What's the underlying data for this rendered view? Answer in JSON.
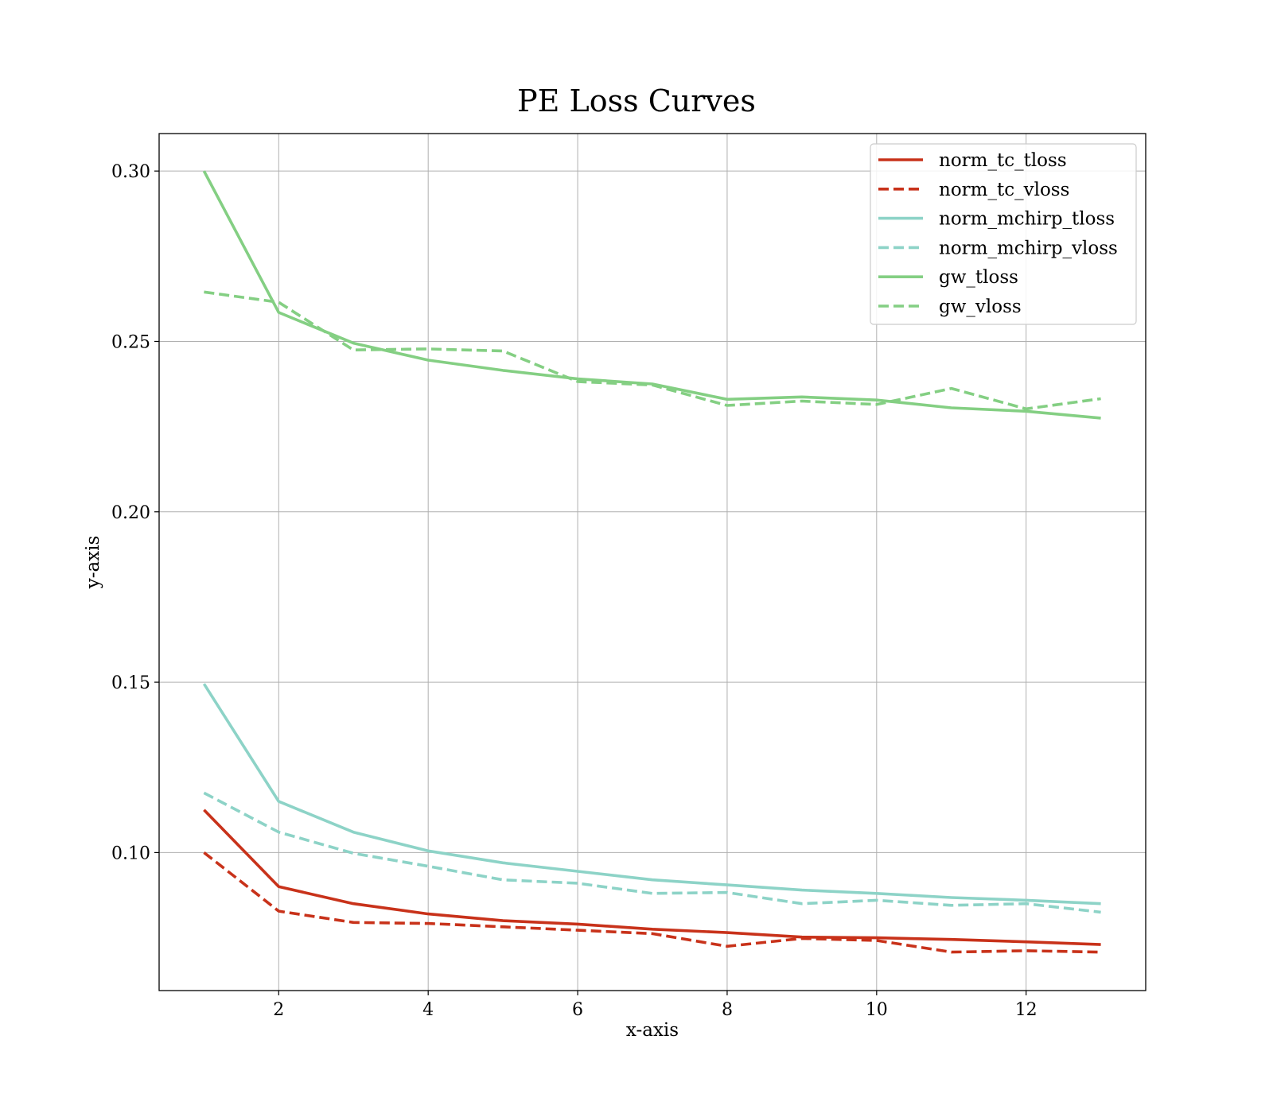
{
  "chart_data": {
    "type": "line",
    "title": "PE Loss Curves",
    "xlabel": "x-axis",
    "ylabel": "y-axis",
    "xlim": [
      0.4,
      13.6
    ],
    "ylim": [
      0.0595,
      0.311
    ],
    "x_ticks": [
      2,
      4,
      6,
      8,
      10,
      12
    ],
    "y_ticks": [
      0.1,
      0.15,
      0.2,
      0.25,
      0.3
    ],
    "y_tick_labels": [
      "0.10",
      "0.15",
      "0.20",
      "0.25",
      "0.30"
    ],
    "grid": true,
    "legend_position": "top-right",
    "x": [
      1,
      2,
      3,
      4,
      5,
      6,
      7,
      8,
      9,
      10,
      11,
      12,
      13
    ],
    "series": [
      {
        "name": "norm_tc_tloss",
        "color": "#c8321a",
        "style": "solid",
        "values": [
          0.1125,
          0.09,
          0.085,
          0.082,
          0.08,
          0.079,
          0.0775,
          0.0765,
          0.0752,
          0.075,
          0.0745,
          0.0738,
          0.073
        ]
      },
      {
        "name": "norm_tc_vloss",
        "color": "#c8321a",
        "style": "dashed",
        "values": [
          0.1,
          0.0828,
          0.0795,
          0.0792,
          0.0782,
          0.0772,
          0.0762,
          0.0725,
          0.0748,
          0.0742,
          0.0708,
          0.0712,
          0.0708
        ]
      },
      {
        "name": "norm_mchirp_tloss",
        "color": "#8dd3c7",
        "style": "solid",
        "values": [
          0.1495,
          0.115,
          0.106,
          0.1005,
          0.097,
          0.0945,
          0.092,
          0.0905,
          0.089,
          0.088,
          0.0868,
          0.086,
          0.085
        ]
      },
      {
        "name": "norm_mchirp_vloss",
        "color": "#8dd3c7",
        "style": "dashed",
        "values": [
          0.1175,
          0.106,
          0.0998,
          0.096,
          0.092,
          0.091,
          0.088,
          0.0883,
          0.085,
          0.086,
          0.0845,
          0.085,
          0.0825
        ]
      },
      {
        "name": "gw_tloss",
        "color": "#84cf83",
        "style": "solid",
        "values": [
          0.3,
          0.2585,
          0.2495,
          0.2445,
          0.2415,
          0.239,
          0.2375,
          0.233,
          0.2337,
          0.2328,
          0.2305,
          0.2295,
          0.2275
        ]
      },
      {
        "name": "gw_vloss",
        "color": "#84cf83",
        "style": "dashed",
        "values": [
          0.2645,
          0.2615,
          0.2475,
          0.2478,
          0.2472,
          0.2382,
          0.2372,
          0.2312,
          0.2325,
          0.2315,
          0.2362,
          0.2302,
          0.2332
        ]
      }
    ]
  }
}
